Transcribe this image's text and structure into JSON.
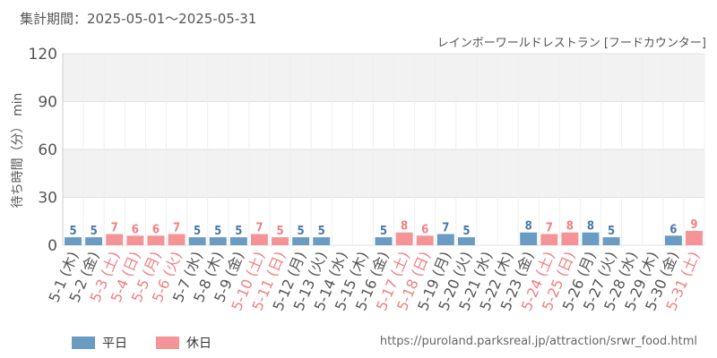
{
  "header": {
    "period": "集計期間：2025-05-01～2025-05-31",
    "subtitle": "レインボーワールドレストラン [フードカウンター]"
  },
  "legend": [
    {
      "label": "平日",
      "color": "#6a9bc3"
    },
    {
      "label": "休日",
      "color": "#f49496"
    }
  ],
  "footer": {
    "source": "https://puroland.parksreal.jp/attraction/srwr_food.html"
  },
  "colors": {
    "weekday_bar": "#6a9bc3",
    "weekday_label": "#4a78a8",
    "holiday_bar": "#f49496",
    "holiday_label": "#f07f82",
    "weekday_text": "#555555",
    "holiday_text": "#f07f82",
    "band": "#f2f2f2",
    "grid": "#e0e0e0"
  },
  "chart_data": {
    "type": "bar",
    "ylabel": "待ち時間（分） min",
    "ylim": [
      0,
      120
    ],
    "yticks": [
      0,
      30,
      60,
      90,
      120
    ],
    "categories": [
      "5-1 (木)",
      "5-2 (金)",
      "5-3 (土)",
      "5-4 (日)",
      "5-5 (月)",
      "5-6 (火)",
      "5-7 (水)",
      "5-8 (木)",
      "5-9 (金)",
      "5-10 (土)",
      "5-11 (日)",
      "5-12 (月)",
      "5-13 (火)",
      "5-14 (水)",
      "5-15 (木)",
      "5-16 (金)",
      "5-17 (土)",
      "5-18 (日)",
      "5-19 (月)",
      "5-20 (火)",
      "5-21 (水)",
      "5-22 (木)",
      "5-23 (金)",
      "5-24 (土)",
      "5-25 (日)",
      "5-26 (月)",
      "5-27 (火)",
      "5-28 (水)",
      "5-29 (木)",
      "5-30 (金)",
      "5-31 (土)"
    ],
    "holiday": [
      false,
      false,
      true,
      true,
      true,
      true,
      false,
      false,
      false,
      true,
      true,
      false,
      false,
      false,
      false,
      false,
      true,
      true,
      false,
      false,
      false,
      false,
      false,
      true,
      true,
      false,
      false,
      false,
      false,
      false,
      true
    ],
    "series": [
      {
        "values": [
          5,
          5,
          7,
          6,
          6,
          7,
          5,
          5,
          5,
          7,
          5,
          5,
          5,
          null,
          null,
          5,
          8,
          6,
          7,
          5,
          null,
          null,
          8,
          7,
          8,
          8,
          5,
          null,
          null,
          6,
          9
        ]
      }
    ]
  }
}
